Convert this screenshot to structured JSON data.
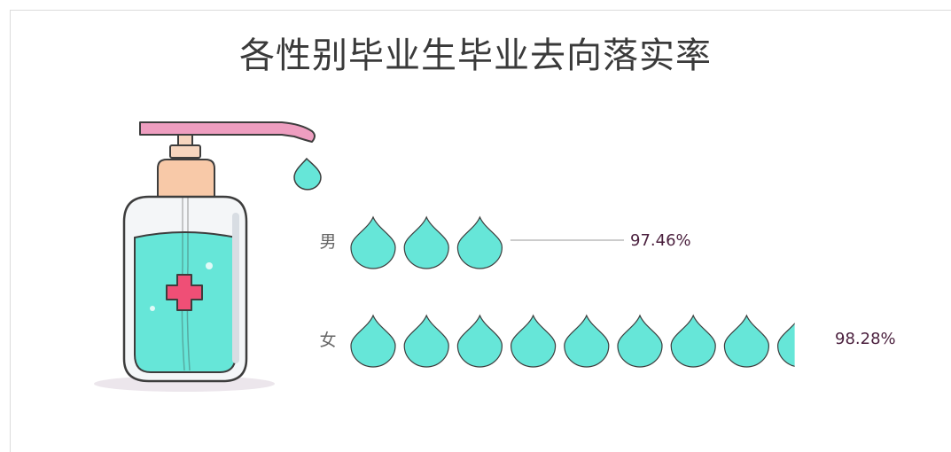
{
  "title": "各性别毕业生毕业去向落实率",
  "chart_data": {
    "type": "bar",
    "style": "pictorial-droplets",
    "categories": [
      "男",
      "女"
    ],
    "values": [
      97.46,
      98.28
    ],
    "value_labels": [
      "97.46%",
      "98.28%"
    ],
    "unit": "%",
    "colors": {
      "drop_fill": "#66E6D8",
      "drop_stroke": "#3d3d3d",
      "label": "#4a1f3d",
      "leader_line": "#999999"
    }
  }
}
